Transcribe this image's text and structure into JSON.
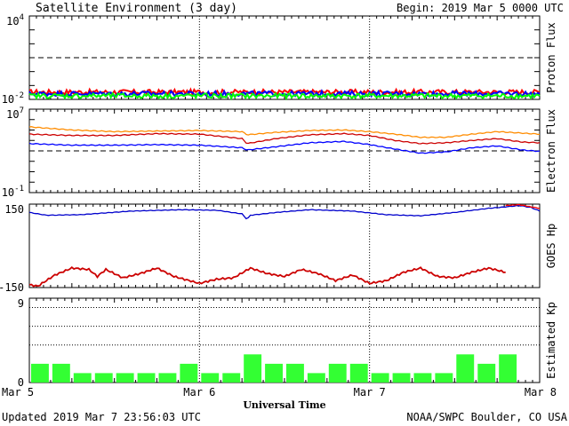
{
  "header": {
    "title": "Satellite Environment (3 day)",
    "begin": "Begin:  2019 Mar 5 0000 UTC"
  },
  "footer": {
    "updated": "Updated 2019 Mar  7 23:56:03 UTC",
    "credit": "NOAA/SWPC Boulder, CO USA",
    "xlabel": "Universal Time"
  },
  "x_ticks": [
    "Mar 5",
    "Mar 6",
    "Mar 7",
    "Mar 8"
  ],
  "chart_data": [
    {
      "name": "proton-flux",
      "type": "line",
      "ylabel": "Proton Flux",
      "y_scale": "log",
      "ylim": [
        0.01,
        10000
      ],
      "ytick_labels": {
        "top": "10",
        "top_exp": "4",
        "bottom": "10",
        "bottom_exp": "-2"
      },
      "threshold": 10,
      "x_range_days": [
        0,
        3
      ],
      "series": [
        {
          "color": "#ff0000",
          "baseline": 0.034
        },
        {
          "color": "#0000ff",
          "baseline": 0.026
        },
        {
          "color": "#00ff00",
          "baseline": 0.018
        }
      ]
    },
    {
      "name": "electron-flux",
      "type": "line",
      "ylabel": "Electron Flux",
      "y_scale": "log",
      "ylim": [
        0.1,
        10000000
      ],
      "ytick_labels": {
        "top": "10",
        "top_exp": "7",
        "bottom": "10",
        "bottom_exp": "-1"
      },
      "threshold": 1000,
      "series": [
        {
          "color": "#ff8c00",
          "x": [
            0,
            0.25,
            0.5,
            0.75,
            1.0,
            1.25,
            1.28,
            1.45,
            1.65,
            1.85,
            2.0,
            2.15,
            2.3,
            2.45,
            2.6,
            2.75,
            2.9,
            3.0
          ],
          "y": [
            200000,
            100000,
            70000,
            80000,
            90000,
            70000,
            35000,
            60000,
            90000,
            100000,
            70000,
            40000,
            20000,
            20000,
            40000,
            70000,
            50000,
            40000
          ]
        },
        {
          "color": "#cc0000",
          "x": [
            0,
            0.25,
            0.5,
            0.75,
            1.0,
            1.25,
            1.28,
            1.45,
            1.65,
            1.85,
            2.0,
            2.15,
            2.3,
            2.45,
            2.6,
            2.75,
            2.9,
            3.0
          ],
          "y": [
            40000,
            30000,
            30000,
            45000,
            40000,
            15000,
            5000,
            15000,
            35000,
            45000,
            30000,
            10000,
            5000,
            6000,
            10000,
            15000,
            7000,
            6000
          ]
        },
        {
          "color": "#0000ff",
          "x": [
            0,
            0.25,
            0.5,
            0.75,
            1.0,
            1.25,
            1.28,
            1.45,
            1.65,
            1.85,
            2.0,
            2.15,
            2.3,
            2.45,
            2.6,
            2.75,
            2.9,
            3.0
          ],
          "y": [
            5000,
            3500,
            3500,
            4000,
            3500,
            2000,
            1200,
            2500,
            6000,
            8000,
            4000,
            1500,
            600,
            800,
            2000,
            3000,
            1200,
            900
          ]
        }
      ]
    },
    {
      "name": "goes-hp",
      "type": "line",
      "ylabel": "GOES Hp",
      "ylim": [
        -150,
        150
      ],
      "ytick_labels": {
        "top": "150",
        "bottom": "-150"
      },
      "series": [
        {
          "color": "#0000cc",
          "x": [
            0,
            0.1,
            0.3,
            0.6,
            0.9,
            1.1,
            1.25,
            1.28,
            1.3,
            1.45,
            1.65,
            1.9,
            2.1,
            2.3,
            2.5,
            2.7,
            2.8,
            2.88,
            2.95,
            3.0
          ],
          "y": [
            120,
            110,
            112,
            125,
            130,
            128,
            115,
            95,
            110,
            120,
            130,
            125,
            112,
            108,
            120,
            135,
            140,
            145,
            138,
            125
          ]
        },
        {
          "color": "#ff0000",
          "x": [
            2.8,
            2.88,
            2.95,
            3.0
          ],
          "y": [
            145,
            148,
            140,
            135
          ]
        },
        {
          "color": "#cc0000",
          "x": [
            0,
            0.05,
            0.15,
            0.25,
            0.35,
            0.4,
            0.45,
            0.55,
            0.65,
            0.75,
            0.85,
            1.0,
            1.1,
            1.2,
            1.3,
            1.4,
            1.5,
            1.6,
            1.7,
            1.8,
            1.9,
            2.0,
            2.1,
            2.2,
            2.3,
            2.4,
            2.5,
            2.6,
            2.7,
            2.8
          ],
          "y": [
            -140,
            -145,
            -105,
            -80,
            -85,
            -110,
            -85,
            -115,
            -100,
            -80,
            -110,
            -135,
            -120,
            -115,
            -80,
            -100,
            -110,
            -85,
            -100,
            -125,
            -105,
            -135,
            -125,
            -95,
            -80,
            -110,
            -115,
            -95,
            -80,
            -95
          ]
        }
      ]
    },
    {
      "name": "estimated-kp",
      "type": "bar",
      "ylabel": "Estimated Kp",
      "ylim": [
        0,
        9
      ],
      "ytick_labels": {
        "top": "9",
        "bottom": "0"
      },
      "gridlines": [
        4,
        6,
        8
      ],
      "bar_color": "#33ff33",
      "values": [
        2,
        2,
        1,
        1,
        1,
        1,
        1,
        2,
        1,
        1,
        3,
        2,
        2,
        1,
        2,
        2,
        1,
        1,
        1,
        1,
        3,
        2,
        3
      ]
    }
  ]
}
